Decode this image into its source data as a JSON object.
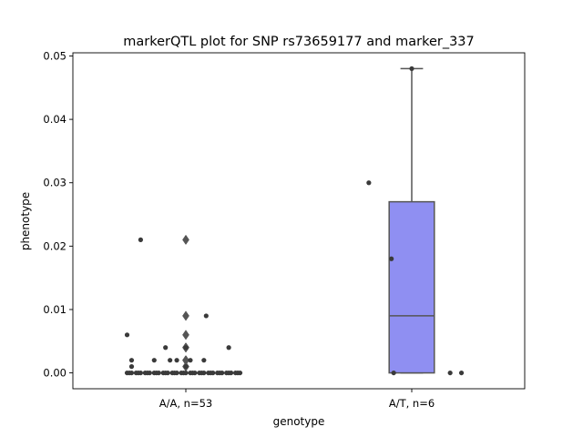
{
  "chart_data": {
    "type": "box",
    "title": "markerQTL plot for SNP rs73659177 and marker_337",
    "xlabel": "genotype",
    "ylabel": "phenotype",
    "ylim": [
      -0.0025,
      0.0505
    ],
    "yticks": [
      0.0,
      0.01,
      0.02,
      0.03,
      0.04,
      0.05
    ],
    "ytick_labels": [
      "0.00",
      "0.01",
      "0.02",
      "0.03",
      "0.04",
      "0.05"
    ],
    "grid": false,
    "categories": [
      "A/A, n=53",
      "A/T, n=6"
    ],
    "colors": {
      "box": "#8f8ff2",
      "line": "#555555",
      "point": "#3a3a3a"
    },
    "groups": [
      {
        "label": "A/A, n=53",
        "box": {
          "q1": 0.0,
          "median": 0.0,
          "q3": 0.0,
          "whisker_low": 0.0,
          "whisker_high": 0.0
        },
        "outliers": [
          0.021,
          0.009,
          0.006,
          0.004,
          0.004,
          0.002,
          0.002,
          0.001
        ],
        "points": [
          [
            -0.2,
            0.021
          ],
          [
            -0.26,
            0.006
          ],
          [
            -0.24,
            0.002
          ],
          [
            -0.14,
            0.002
          ],
          [
            -0.09,
            0.004
          ],
          [
            -0.07,
            0.002
          ],
          [
            -0.04,
            0.002
          ],
          [
            0.0,
            0.004
          ],
          [
            0.0,
            0.001
          ],
          [
            0.09,
            0.009
          ],
          [
            0.19,
            0.004
          ],
          [
            -0.24,
            0.001
          ],
          [
            0.02,
            0.002
          ],
          [
            0.08,
            0.002
          ],
          [
            -0.26,
            0.0
          ],
          [
            -0.24,
            0.0
          ],
          [
            -0.22,
            0.0
          ],
          [
            -0.2,
            0.0
          ],
          [
            -0.18,
            0.0
          ],
          [
            -0.16,
            0.0
          ],
          [
            -0.14,
            0.0
          ],
          [
            -0.12,
            0.0
          ],
          [
            -0.1,
            0.0
          ],
          [
            -0.08,
            0.0
          ],
          [
            -0.06,
            0.0
          ],
          [
            -0.04,
            0.0
          ],
          [
            -0.02,
            0.0
          ],
          [
            0.0,
            0.0
          ],
          [
            0.02,
            0.0
          ],
          [
            0.04,
            0.0
          ],
          [
            0.06,
            0.0
          ],
          [
            0.08,
            0.0
          ],
          [
            0.1,
            0.0
          ],
          [
            0.12,
            0.0
          ],
          [
            0.14,
            0.0
          ],
          [
            0.16,
            0.0
          ],
          [
            0.18,
            0.0
          ],
          [
            0.2,
            0.0
          ],
          [
            0.22,
            0.0
          ],
          [
            0.24,
            0.0
          ],
          [
            -0.25,
            0.0
          ],
          [
            -0.21,
            0.0
          ],
          [
            -0.17,
            0.0
          ],
          [
            -0.13,
            0.0
          ],
          [
            -0.09,
            0.0
          ],
          [
            -0.05,
            0.0
          ],
          [
            -0.01,
            0.0
          ],
          [
            0.03,
            0.0
          ],
          [
            0.07,
            0.0
          ],
          [
            0.11,
            0.0
          ],
          [
            0.15,
            0.0
          ],
          [
            0.19,
            0.0
          ],
          [
            0.23,
            0.0
          ]
        ]
      },
      {
        "label": "A/T, n=6",
        "box": {
          "q1": 0.0,
          "median": 0.009,
          "q3": 0.027,
          "whisker_low": 0.0,
          "whisker_high": 0.048
        },
        "outliers": [],
        "points": [
          [
            0.0,
            0.048
          ],
          [
            -0.19,
            0.03
          ],
          [
            -0.09,
            0.018
          ],
          [
            -0.08,
            0.0
          ],
          [
            0.17,
            0.0
          ],
          [
            0.22,
            0.0
          ]
        ]
      }
    ]
  }
}
